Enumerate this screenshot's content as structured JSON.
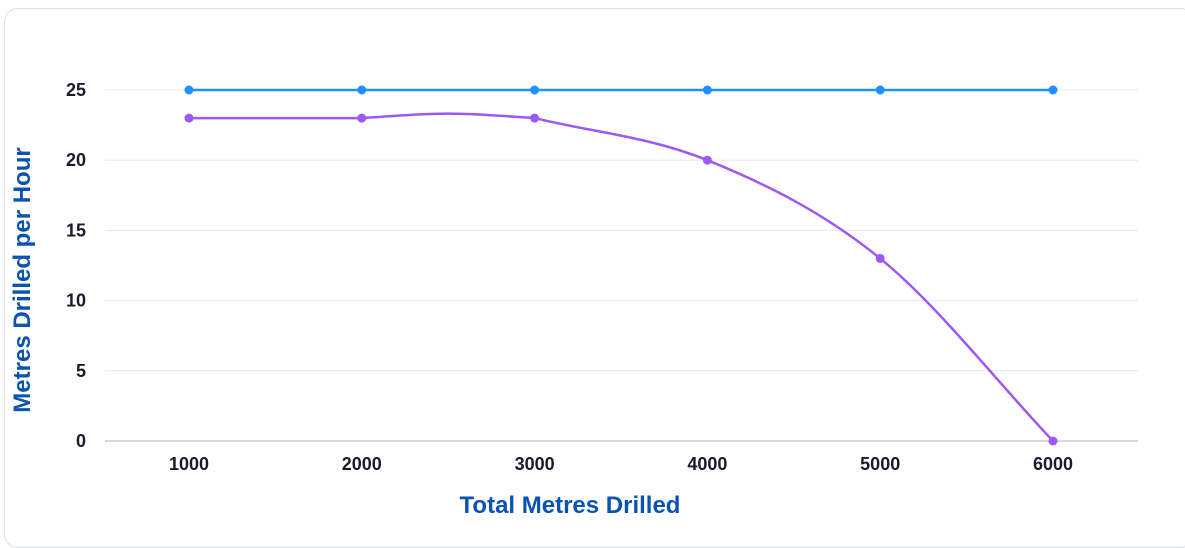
{
  "chart_data": {
    "type": "line",
    "x": [
      1000,
      2000,
      3000,
      4000,
      5000,
      6000
    ],
    "xlabel": "Total Metres Drilled",
    "ylabel": "Metres Drilled per Hour",
    "ylim": [
      0,
      25
    ],
    "yticks": [
      0,
      5,
      10,
      15,
      20,
      25
    ],
    "xtick_labels": [
      "1000",
      "2000",
      "3000",
      "4000",
      "5000",
      "6000"
    ],
    "ytick_labels": [
      "0",
      "5",
      "10",
      "15",
      "20",
      "25"
    ],
    "grid": true,
    "series": [
      {
        "values": [
          25,
          25,
          25,
          25,
          25,
          25
        ],
        "color": "#1e90ff",
        "smooth": false
      },
      {
        "values": [
          23,
          23,
          23,
          20,
          13,
          0
        ],
        "color": "#9b59f5",
        "smooth": true
      }
    ]
  }
}
